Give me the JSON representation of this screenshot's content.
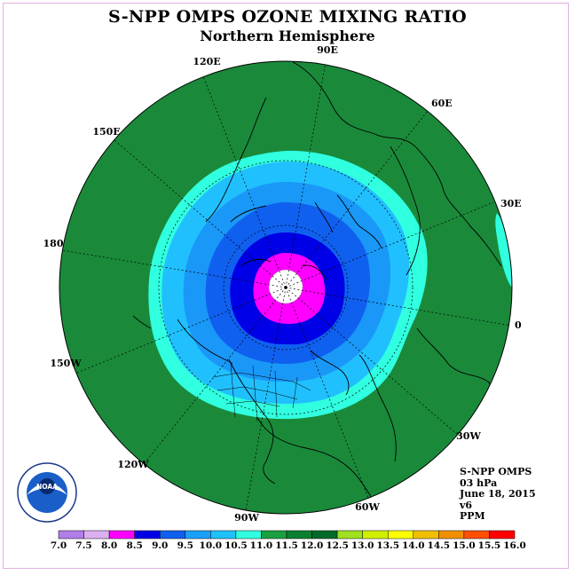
{
  "title": "S-NPP OMPS OZONE MIXING RATIO",
  "subtitle": "Northern Hemisphere",
  "info": {
    "instrument": "S-NPP OMPS",
    "level": "03 hPa",
    "date": "June 18, 2015",
    "version": "v6",
    "units": "PPM"
  },
  "logo": {
    "text": "NOAA",
    "ring_text": "NATIONAL OCEANIC AND ATMOSPHERIC ADMINISTRATION · U.S. DEPARTMENT OF COMMERCE"
  },
  "longitude_labels": [
    "0",
    "30E",
    "60E",
    "90E",
    "120E",
    "150E",
    "180",
    "150W",
    "120W",
    "90W",
    "60W",
    "30W"
  ],
  "colorbar": {
    "ticks": [
      "7.0",
      "7.5",
      "8.0",
      "8.5",
      "9.0",
      "9.5",
      "10.0",
      "10.5",
      "11.0",
      "11.5",
      "12.0",
      "12.5",
      "13.0",
      "13.5",
      "14.0",
      "14.5",
      "15.0",
      "15.5",
      "16.0"
    ],
    "colors": [
      "#b07ee8",
      "#dcb0f0",
      "#ff00ff",
      "#0000e6",
      "#1060f0",
      "#1aa0f8",
      "#20c0ff",
      "#30ffe0",
      "#1aa040",
      "#0a8030",
      "#006a28",
      "#a0e020",
      "#d0f000",
      "#ffff00",
      "#f0c000",
      "#f09000",
      "#ff5000",
      "#ff0000",
      "#8b4a3a"
    ]
  },
  "chart_data": {
    "type": "heatmap",
    "projection": "north polar stereographic",
    "colorbar_units": "PPM",
    "value_range": [
      7.0,
      16.0
    ],
    "contour_levels": [
      7.0,
      7.5,
      8.0,
      8.5,
      9.0,
      9.5,
      10.0,
      10.5,
      11.0,
      11.5,
      12.0,
      12.5,
      13.0,
      13.5,
      14.0,
      14.5,
      15.0,
      15.5,
      16.0
    ],
    "field_description_levels": [
      "11.0-11.5 outer band",
      "10.5-11.0",
      "10.0-10.5",
      "9.5-10.0",
      "9.0-9.5",
      "8.5-9.0",
      "8.0-8.5 near pole",
      "no data at pole"
    ]
  }
}
